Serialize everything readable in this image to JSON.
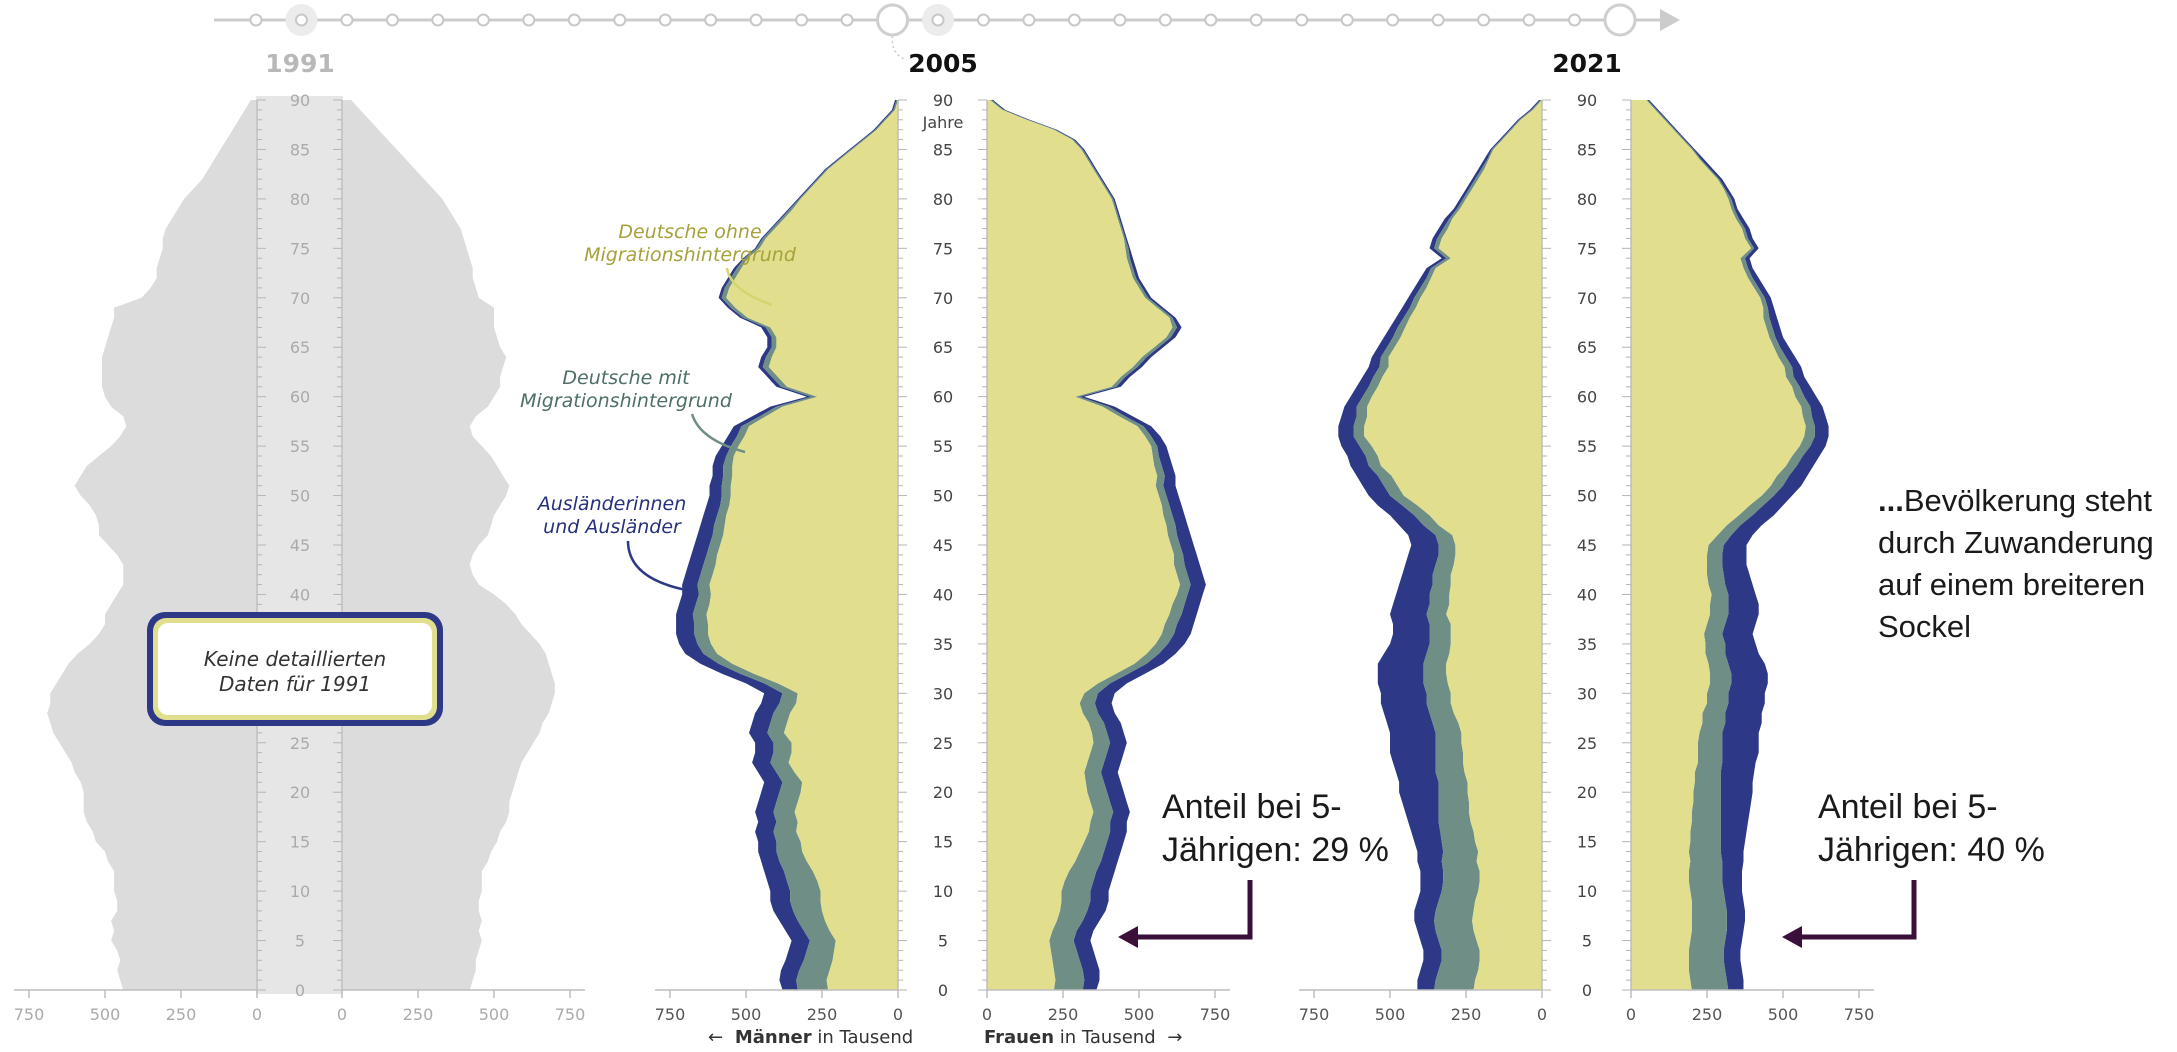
{
  "colors": {
    "deutsche_ohne": "#e1df8e",
    "deutsche_mit": "#6f8f86",
    "auslaender": "#2d3886",
    "grey": "#dcdcdc",
    "axis": "#9a9a9a",
    "arrow": "#3a0f3a",
    "label_ohne": "#a5a23b",
    "label_mit": "#4e6e68",
    "label_aus": "#27307a"
  },
  "timeline": {
    "icons": [
      "play-icon"
    ]
  },
  "chart_data": [
    {
      "type": "area",
      "title": "1991",
      "male": [
        440,
        450,
        460,
        450,
        460,
        480,
        470,
        480,
        460,
        460,
        470,
        470,
        470,
        490,
        500,
        530,
        540,
        560,
        570,
        570,
        570,
        580,
        600,
        610,
        630,
        650,
        670,
        680,
        690,
        680,
        680,
        660,
        640,
        620,
        590,
        550,
        520,
        500,
        500,
        480,
        460,
        440,
        440,
        440,
        460,
        490,
        520,
        520,
        530,
        550,
        580,
        600,
        580,
        560,
        520,
        480,
        450,
        430,
        440,
        480,
        500,
        510,
        510,
        510,
        510,
        500,
        490,
        480,
        470,
        470,
        380,
        350,
        330,
        330,
        320,
        310,
        310,
        300,
        280,
        260,
        240,
        210,
        180,
        160,
        140,
        120,
        100,
        80,
        60,
        40,
        20
      ],
      "female": [
        420,
        430,
        440,
        440,
        450,
        460,
        450,
        460,
        450,
        450,
        460,
        460,
        460,
        480,
        490,
        510,
        520,
        540,
        550,
        550,
        560,
        570,
        580,
        590,
        610,
        630,
        650,
        660,
        680,
        690,
        700,
        700,
        690,
        680,
        670,
        650,
        620,
        590,
        570,
        540,
        500,
        450,
        430,
        420,
        430,
        450,
        480,
        490,
        500,
        520,
        540,
        550,
        530,
        510,
        490,
        460,
        430,
        420,
        440,
        480,
        500,
        520,
        520,
        530,
        540,
        520,
        510,
        500,
        500,
        500,
        450,
        440,
        430,
        430,
        420,
        410,
        400,
        390,
        370,
        350,
        330,
        300,
        270,
        240,
        210,
        180,
        150,
        120,
        90,
        60,
        30
      ]
    },
    {
      "type": "area",
      "title": "2005",
      "male_total": [
        380,
        390,
        385,
        370,
        360,
        350,
        370,
        390,
        410,
        420,
        420,
        430,
        440,
        450,
        460,
        460,
        470,
        460,
        470,
        460,
        450,
        440,
        460,
        480,
        470,
        470,
        490,
        480,
        470,
        450,
        440,
        500,
        580,
        650,
        700,
        720,
        730,
        730,
        730,
        720,
        710,
        710,
        700,
        690,
        680,
        670,
        660,
        650,
        640,
        630,
        620,
        620,
        610,
        610,
        600,
        580,
        560,
        540,
        480,
        420,
        300,
        400,
        430,
        460,
        450,
        430,
        430,
        450,
        520,
        560,
        590,
        580,
        560,
        540,
        510,
        470,
        450,
        420,
        390,
        360,
        330,
        300,
        270,
        240,
        200,
        160,
        120,
        80,
        50,
        20,
        10
      ],
      "male_foreign": [
        50,
        55,
        60,
        60,
        60,
        60,
        60,
        60,
        65,
        65,
        65,
        65,
        65,
        60,
        60,
        60,
        60,
        60,
        60,
        60,
        60,
        60,
        60,
        60,
        60,
        60,
        60,
        60,
        60,
        60,
        60,
        60,
        60,
        60,
        60,
        60,
        60,
        60,
        55,
        55,
        55,
        50,
        50,
        50,
        50,
        50,
        50,
        45,
        45,
        45,
        40,
        40,
        35,
        35,
        35,
        30,
        30,
        25,
        25,
        20,
        15,
        15,
        15,
        15,
        15,
        15,
        15,
        15,
        10,
        10,
        10,
        10,
        10,
        10,
        5,
        5,
        5,
        5,
        5,
        5,
        5,
        5,
        5,
        5,
        5,
        5,
        5,
        5,
        5,
        5,
        5
      ],
      "male_mit": [
        100,
        100,
        100,
        95,
        90,
        85,
        85,
        90,
        95,
        100,
        100,
        100,
        95,
        90,
        85,
        80,
        75,
        70,
        70,
        70,
        70,
        65,
        60,
        60,
        60,
        60,
        55,
        55,
        55,
        55,
        50,
        45,
        45,
        45,
        45,
        45,
        45,
        45,
        45,
        45,
        40,
        40,
        40,
        40,
        35,
        35,
        35,
        35,
        30,
        30,
        30,
        30,
        30,
        30,
        25,
        25,
        25,
        25,
        20,
        20,
        20,
        20,
        20,
        20,
        20,
        15,
        15,
        15,
        15,
        15,
        15,
        15,
        15,
        15,
        10,
        10,
        10,
        10,
        10,
        10,
        5,
        5,
        5,
        5,
        5,
        5,
        5,
        5,
        5,
        5,
        5
      ],
      "female_total": [
        360,
        370,
        370,
        360,
        350,
        340,
        350,
        370,
        390,
        400,
        400,
        410,
        420,
        430,
        440,
        450,
        460,
        460,
        470,
        460,
        450,
        440,
        430,
        440,
        450,
        460,
        450,
        440,
        420,
        410,
        420,
        460,
        520,
        580,
        620,
        650,
        670,
        680,
        690,
        700,
        710,
        720,
        710,
        700,
        690,
        680,
        670,
        660,
        650,
        640,
        630,
        620,
        620,
        610,
        600,
        590,
        570,
        540,
        480,
        420,
        320,
        440,
        470,
        510,
        540,
        580,
        620,
        640,
        620,
        580,
        540,
        520,
        500,
        490,
        480,
        470,
        460,
        450,
        440,
        430,
        420,
        400,
        380,
        360,
        340,
        320,
        290,
        230,
        140,
        60,
        20
      ],
      "female_foreign": [
        45,
        50,
        55,
        55,
        55,
        55,
        55,
        55,
        60,
        60,
        60,
        60,
        60,
        55,
        55,
        55,
        55,
        55,
        55,
        55,
        55,
        55,
        55,
        55,
        55,
        55,
        55,
        55,
        55,
        55,
        55,
        55,
        55,
        55,
        55,
        55,
        55,
        55,
        50,
        50,
        50,
        50,
        50,
        50,
        45,
        45,
        45,
        40,
        40,
        40,
        40,
        40,
        35,
        35,
        35,
        30,
        30,
        25,
        25,
        20,
        15,
        15,
        15,
        15,
        15,
        15,
        15,
        15,
        10,
        10,
        10,
        10,
        10,
        10,
        10,
        5,
        5,
        5,
        5,
        5,
        5,
        5,
        5,
        5,
        5,
        5,
        5,
        5,
        5,
        5,
        5
      ],
      "female_mit": [
        95,
        95,
        95,
        90,
        85,
        80,
        80,
        85,
        90,
        95,
        95,
        95,
        90,
        85,
        80,
        75,
        70,
        65,
        65,
        65,
        65,
        60,
        55,
        55,
        55,
        55,
        50,
        50,
        50,
        50,
        45,
        40,
        40,
        40,
        40,
        40,
        40,
        40,
        40,
        40,
        35,
        35,
        35,
        35,
        30,
        30,
        30,
        30,
        30,
        25,
        25,
        25,
        25,
        25,
        20,
        20,
        20,
        20,
        20,
        20,
        15,
        15,
        15,
        15,
        15,
        15,
        15,
        15,
        10,
        10,
        10,
        10,
        10,
        10,
        10,
        10,
        5,
        5,
        5,
        5,
        5,
        5,
        5,
        5,
        5,
        5,
        5,
        5,
        5,
        5,
        5
      ]
    },
    {
      "type": "area",
      "title": "2021",
      "male_total": [
        410,
        410,
        400,
        390,
        390,
        400,
        410,
        420,
        420,
        410,
        400,
        400,
        400,
        410,
        410,
        420,
        430,
        440,
        450,
        460,
        470,
        470,
        480,
        490,
        500,
        500,
        500,
        510,
        520,
        530,
        530,
        540,
        540,
        540,
        520,
        500,
        490,
        490,
        500,
        490,
        480,
        470,
        460,
        450,
        440,
        430,
        440,
        470,
        500,
        540,
        570,
        590,
        610,
        630,
        640,
        660,
        670,
        670,
        660,
        650,
        630,
        610,
        590,
        570,
        560,
        540,
        520,
        500,
        480,
        460,
        440,
        420,
        400,
        380,
        330,
        370,
        360,
        340,
        320,
        290,
        270,
        250,
        230,
        210,
        190,
        170,
        140,
        110,
        80,
        40,
        10
      ],
      "male_foreign": [
        55,
        60,
        60,
        60,
        60,
        60,
        60,
        65,
        70,
        70,
        70,
        75,
        75,
        80,
        85,
        90,
        95,
        100,
        110,
        120,
        130,
        130,
        130,
        140,
        150,
        150,
        150,
        150,
        150,
        150,
        150,
        150,
        150,
        150,
        140,
        130,
        120,
        120,
        120,
        120,
        110,
        110,
        100,
        100,
        100,
        90,
        90,
        80,
        80,
        80,
        70,
        70,
        70,
        60,
        60,
        60,
        50,
        50,
        50,
        40,
        40,
        40,
        35,
        35,
        30,
        30,
        30,
        25,
        25,
        25,
        20,
        20,
        20,
        15,
        15,
        15,
        15,
        15,
        15,
        10,
        10,
        10,
        10,
        10,
        10,
        5,
        5,
        5,
        5,
        5,
        5
      ],
      "male_mit": [
        130,
        130,
        130,
        125,
        125,
        125,
        125,
        125,
        125,
        120,
        120,
        120,
        120,
        115,
        115,
        110,
        110,
        105,
        100,
        100,
        95,
        95,
        95,
        90,
        90,
        85,
        85,
        85,
        80,
        80,
        80,
        80,
        75,
        75,
        75,
        70,
        70,
        70,
        65,
        65,
        65,
        60,
        60,
        60,
        55,
        55,
        55,
        50,
        50,
        50,
        45,
        45,
        45,
        40,
        40,
        40,
        35,
        35,
        35,
        35,
        30,
        30,
        30,
        30,
        25,
        25,
        25,
        25,
        20,
        20,
        20,
        20,
        15,
        15,
        15,
        15,
        15,
        15,
        10,
        10,
        10,
        10,
        10,
        10,
        5,
        5,
        5,
        5,
        5,
        5,
        5
      ],
      "female_total": [
        370,
        370,
        365,
        360,
        360,
        365,
        370,
        375,
        375,
        370,
        365,
        365,
        365,
        370,
        370,
        375,
        380,
        385,
        390,
        395,
        400,
        400,
        405,
        410,
        420,
        420,
        420,
        430,
        430,
        440,
        440,
        450,
        450,
        440,
        420,
        410,
        400,
        410,
        420,
        420,
        410,
        400,
        390,
        380,
        380,
        380,
        400,
        430,
        470,
        500,
        530,
        560,
        580,
        600,
        620,
        640,
        650,
        650,
        640,
        630,
        610,
        590,
        570,
        560,
        540,
        520,
        500,
        490,
        480,
        470,
        460,
        440,
        420,
        400,
        390,
        420,
        400,
        390,
        370,
        350,
        340,
        320,
        300,
        270,
        240,
        210,
        180,
        150,
        120,
        90,
        60
      ],
      "female_foreign": [
        50,
        55,
        55,
        55,
        55,
        55,
        55,
        60,
        60,
        60,
        60,
        65,
        65,
        70,
        75,
        80,
        85,
        90,
        95,
        100,
        105,
        105,
        110,
        110,
        120,
        120,
        120,
        120,
        120,
        120,
        120,
        120,
        120,
        120,
        110,
        100,
        100,
        100,
        100,
        100,
        90,
        90,
        85,
        80,
        80,
        75,
        70,
        70,
        70,
        65,
        60,
        60,
        60,
        55,
        55,
        50,
        45,
        45,
        45,
        40,
        40,
        35,
        35,
        30,
        30,
        30,
        25,
        25,
        25,
        20,
        20,
        20,
        20,
        15,
        15,
        15,
        15,
        15,
        15,
        10,
        10,
        10,
        10,
        10,
        10,
        5,
        5,
        5,
        5,
        5,
        5
      ],
      "female_mit": [
        120,
        120,
        120,
        115,
        115,
        115,
        115,
        115,
        115,
        110,
        110,
        110,
        110,
        105,
        105,
        100,
        100,
        95,
        95,
        90,
        90,
        85,
        85,
        80,
        80,
        80,
        75,
        75,
        75,
        70,
        70,
        70,
        70,
        65,
        65,
        65,
        60,
        60,
        60,
        60,
        55,
        55,
        55,
        50,
        50,
        50,
        45,
        45,
        45,
        45,
        40,
        40,
        40,
        35,
        35,
        35,
        35,
        30,
        30,
        30,
        30,
        25,
        25,
        25,
        25,
        20,
        20,
        20,
        20,
        15,
        15,
        15,
        15,
        15,
        15,
        10,
        10,
        10,
        10,
        10,
        10,
        5,
        5,
        5,
        5,
        5,
        5,
        5,
        5,
        5,
        5
      ]
    }
  ],
  "axis": {
    "age_ticks": [
      "0",
      "5",
      "10",
      "15",
      "20",
      "25",
      "30",
      "35",
      "40",
      "45",
      "50",
      "55",
      "60",
      "65",
      "70",
      "75",
      "80",
      "85",
      "90"
    ],
    "age_unit": "Jahre",
    "x_ticks_left": [
      "750",
      "500",
      "250",
      "0"
    ],
    "x_ticks_right": [
      "0",
      "250",
      "500",
      "750"
    ]
  },
  "labels": {
    "men_arrow": "←",
    "men_bold": "Männer",
    "men_rest": " in Tausend",
    "women_bold": "Frauen",
    "women_rest": " in Tausend",
    "women_arrow": "→",
    "legend_ohne_1": "Deutsche ohne",
    "legend_ohne_2": "Migrationshintergrund",
    "legend_mit_1": "Deutsche mit",
    "legend_mit_2": "Migrationshintergrund",
    "legend_aus_1": "Ausländerinnen",
    "legend_aus_2": "und Ausländer",
    "no_data_1": "Keine detaillierten",
    "no_data_2": "Daten für 1991"
  },
  "annotations": {
    "share_2005_1": "Anteil bei 5-",
    "share_2005_2": "Jährigen: 29 %",
    "share_2021_1": "Anteil bei 5-",
    "share_2021_2": "Jährigen: 40 %",
    "side_1": "Bevölkerung steht",
    "side_2": "durch Zuwanderung",
    "side_3": "auf einem breiteren",
    "side_4": "Sockel",
    "side_prefix": "..."
  }
}
